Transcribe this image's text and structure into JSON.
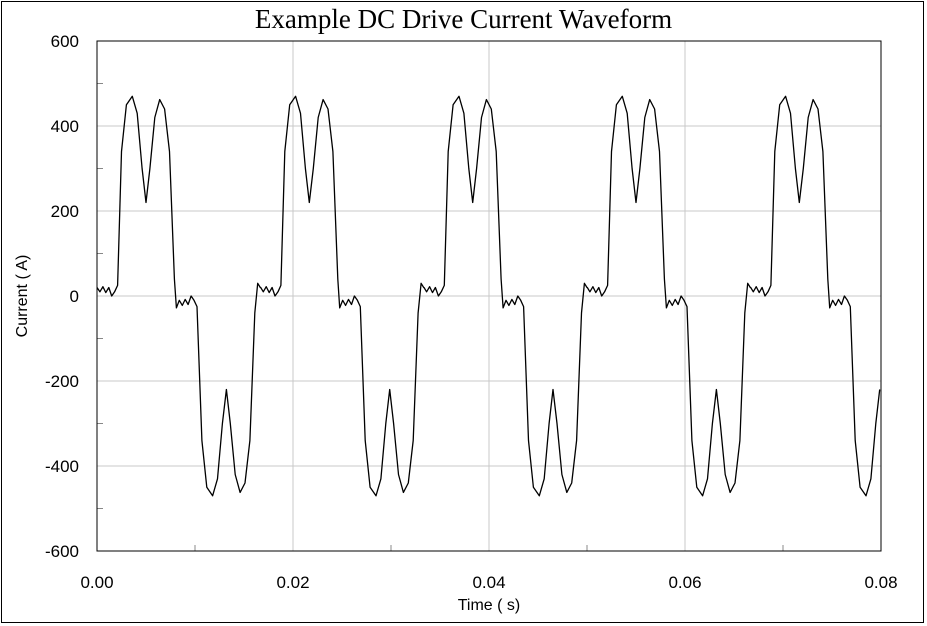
{
  "chart_data": {
    "type": "line",
    "title": "Example DC Drive Current Waveform",
    "xlabel": "Time ( s)",
    "ylabel": "Current ( A)",
    "xlim": [
      0,
      0.08
    ],
    "ylim": [
      -600,
      600
    ],
    "x_ticks": [
      "0.00",
      "0.02",
      "0.04",
      "0.06",
      "0.08"
    ],
    "x_tick_values": [
      0,
      0.02,
      0.04,
      0.06,
      0.08
    ],
    "y_ticks": [
      "600",
      "400",
      "200",
      "0",
      "-200",
      "-400",
      "-600"
    ],
    "y_tick_values": [
      600,
      400,
      200,
      0,
      -200,
      -400,
      -600
    ],
    "grid": true,
    "line_color": "#000000",
    "period_s": 0.016667,
    "series": [
      {
        "points_per_period": [
          [
            0.0,
            20
          ],
          [
            0.0003,
            10
          ],
          [
            0.0006,
            22
          ],
          [
            0.0009,
            8
          ],
          [
            0.0012,
            20
          ],
          [
            0.0015,
            0
          ],
          [
            0.0018,
            10
          ],
          [
            0.0021,
            25
          ],
          [
            0.0025,
            340
          ],
          [
            0.003,
            450
          ],
          [
            0.0036,
            470
          ],
          [
            0.0041,
            430
          ],
          [
            0.0046,
            300
          ],
          [
            0.005,
            220
          ],
          [
            0.0054,
            300
          ],
          [
            0.0059,
            420
          ],
          [
            0.0064,
            462
          ],
          [
            0.0069,
            440
          ],
          [
            0.0074,
            340
          ],
          [
            0.0079,
            40
          ],
          [
            0.0081,
            -28
          ],
          [
            0.0084,
            -10
          ],
          [
            0.0087,
            -22
          ],
          [
            0.009,
            -8
          ],
          [
            0.0093,
            -20
          ],
          [
            0.0096,
            0
          ],
          [
            0.0099,
            -10
          ],
          [
            0.0102,
            -25
          ],
          [
            0.0107,
            -340
          ],
          [
            0.0112,
            -450
          ],
          [
            0.0118,
            -470
          ],
          [
            0.0123,
            -430
          ],
          [
            0.0128,
            -300
          ],
          [
            0.0132,
            -220
          ],
          [
            0.0136,
            -300
          ],
          [
            0.0141,
            -420
          ],
          [
            0.0146,
            -462
          ],
          [
            0.0151,
            -440
          ],
          [
            0.0156,
            -340
          ],
          [
            0.0161,
            -40
          ],
          [
            0.0164,
            30
          ],
          [
            0.0167,
            20
          ]
        ]
      }
    ]
  }
}
